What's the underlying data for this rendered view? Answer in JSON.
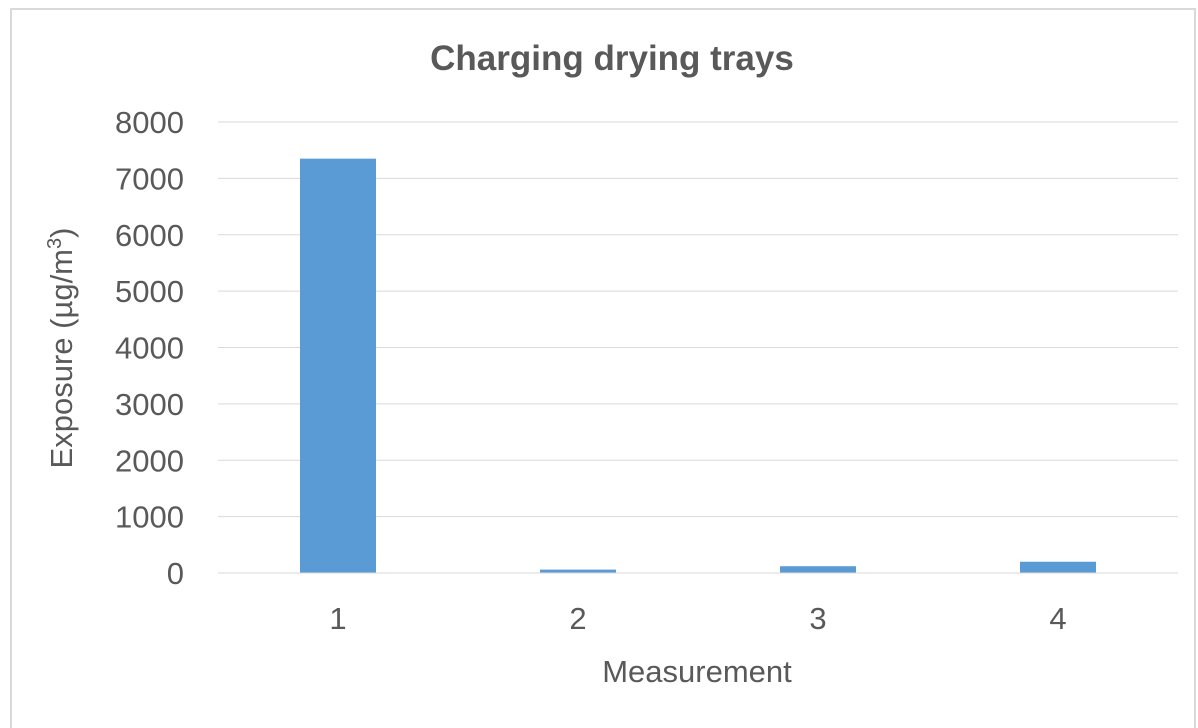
{
  "chart_data": {
    "type": "bar",
    "title": "Charging drying trays",
    "xlabel": "Measurement",
    "ylabel": "Exposure (µg/m",
    "ylabel_superscript": "3",
    "ylabel_suffix": ")",
    "categories": [
      "1",
      "2",
      "3",
      "4"
    ],
    "values": [
      7350,
      60,
      120,
      200
    ],
    "ylim": [
      0,
      8000
    ],
    "yticks": [
      0,
      1000,
      2000,
      3000,
      4000,
      5000,
      6000,
      7000,
      8000
    ],
    "grid": true,
    "legend": "none",
    "bar_color": "#5b9bd5",
    "grid_color": "#d9d9d9",
    "text_color": "#595959"
  }
}
